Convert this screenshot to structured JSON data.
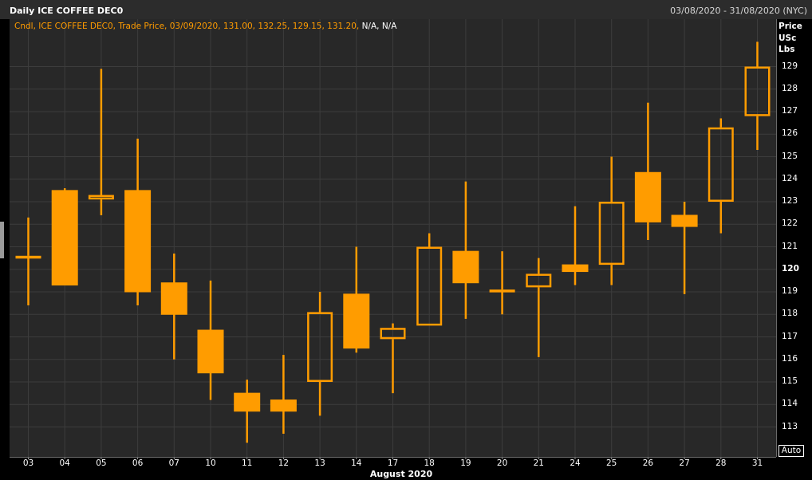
{
  "header": {
    "title": "Daily ICE COFFEE DEC0",
    "date_range": "03/08/2020 - 31/08/2020 (NYC)"
  },
  "legend": {
    "main": "Cndl, ICE COFFEE DEC0, Trade Price, 03/09/2020, 131.00, 132.25, 129.15, 131.20,",
    "na": " N/A, N/A"
  },
  "axis": {
    "y_title_lines": [
      "Price",
      "USc",
      "Lbs"
    ],
    "x_title": "August 2020",
    "auto_label": "Auto"
  },
  "colors": {
    "candle": "#ff9c00",
    "plot_bg": "#282828",
    "grid": "#3c3c3c"
  },
  "chart_data": {
    "type": "candlestick",
    "title": "Daily ICE COFFEE DEC0",
    "xlabel": "August 2020",
    "ylabel": "Price USc Lbs",
    "ylim": [
      112.2,
      131.6
    ],
    "y_ticks": [
      113,
      114,
      115,
      116,
      117,
      118,
      119,
      120,
      121,
      122,
      123,
      124,
      125,
      126,
      127,
      128,
      129
    ],
    "y_bold_tick": 120,
    "grid": true,
    "categories": [
      "03",
      "04",
      "05",
      "06",
      "07",
      "10",
      "11",
      "12",
      "13",
      "14",
      "17",
      "18",
      "19",
      "20",
      "21",
      "24",
      "25",
      "26",
      "27",
      "28",
      "31"
    ],
    "open": [
      120.6,
      123.5,
      123.1,
      123.5,
      119.4,
      117.3,
      114.5,
      114.2,
      115.0,
      118.9,
      116.9,
      117.5,
      120.8,
      119.0,
      119.2,
      120.2,
      120.2,
      124.3,
      122.4,
      123.0,
      126.8
    ],
    "high": [
      122.3,
      123.6,
      128.9,
      125.8,
      120.7,
      119.5,
      115.1,
      116.2,
      119.0,
      121.0,
      117.6,
      121.6,
      123.9,
      120.8,
      120.5,
      122.8,
      125.0,
      127.4,
      123.0,
      126.7,
      130.1
    ],
    "low": [
      118.4,
      119.3,
      122.4,
      118.4,
      116.0,
      114.2,
      112.3,
      112.7,
      113.5,
      116.3,
      114.5,
      117.5,
      117.8,
      118.0,
      116.1,
      119.3,
      119.3,
      121.3,
      118.9,
      121.6,
      125.3
    ],
    "close": [
      120.6,
      119.3,
      123.3,
      119.0,
      118.0,
      115.4,
      113.7,
      113.7,
      118.1,
      116.5,
      117.4,
      121.0,
      119.4,
      119.1,
      119.8,
      119.9,
      123.0,
      122.1,
      121.9,
      126.3,
      129.0
    ],
    "legend_placement": "top-left"
  }
}
